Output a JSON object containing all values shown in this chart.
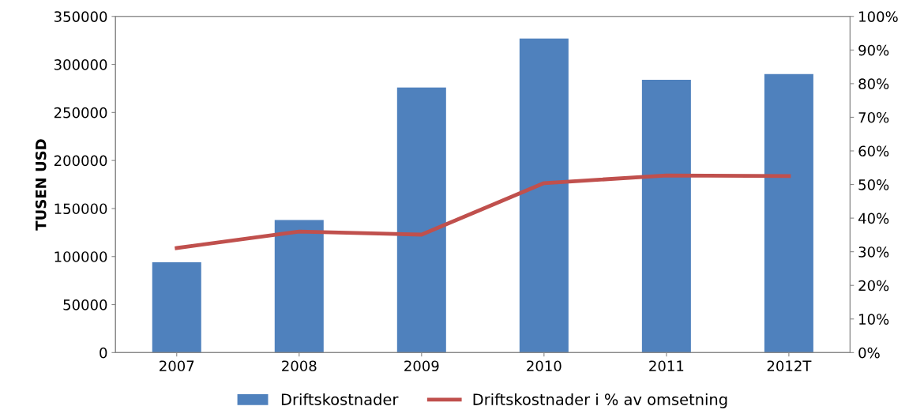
{
  "chart_data": {
    "type": "bar",
    "ylabel": "TUSEN USD",
    "categories": [
      "2007",
      "2008",
      "2009",
      "2010",
      "2011",
      "2012T"
    ],
    "series": [
      {
        "name": "Driftskostnader",
        "color": "#4f81bd",
        "values": [
          94000,
          138000,
          276000,
          327000,
          284000,
          290000
        ]
      },
      {
        "name": "Driftskostnader i % av omsetning",
        "type": "line",
        "axis": "y2",
        "color": "#c0504d",
        "values": [
          31.1,
          36.0,
          35.1,
          50.4,
          52.7,
          52.5
        ]
      }
    ],
    "ylim": [
      0,
      350000
    ],
    "yticks": [
      0,
      50000,
      100000,
      150000,
      200000,
      250000,
      300000,
      350000
    ],
    "y2lim": [
      0,
      100
    ],
    "y2ticks": [
      {
        "value": 0,
        "label": "0%"
      },
      {
        "value": 10,
        "label": "10%"
      },
      {
        "value": 20,
        "label": "20%"
      },
      {
        "value": 30,
        "label": "30%"
      },
      {
        "value": 40,
        "label": "40%"
      },
      {
        "value": 50,
        "label": "50%"
      },
      {
        "value": 60,
        "label": "60%"
      },
      {
        "value": 70,
        "label": "70%"
      },
      {
        "value": 80,
        "label": "80%"
      },
      {
        "value": 90,
        "label": "90%"
      },
      {
        "value": 100,
        "label": "100%"
      }
    ],
    "legend": "bottom",
    "marker": "none",
    "line_style": "solid"
  }
}
